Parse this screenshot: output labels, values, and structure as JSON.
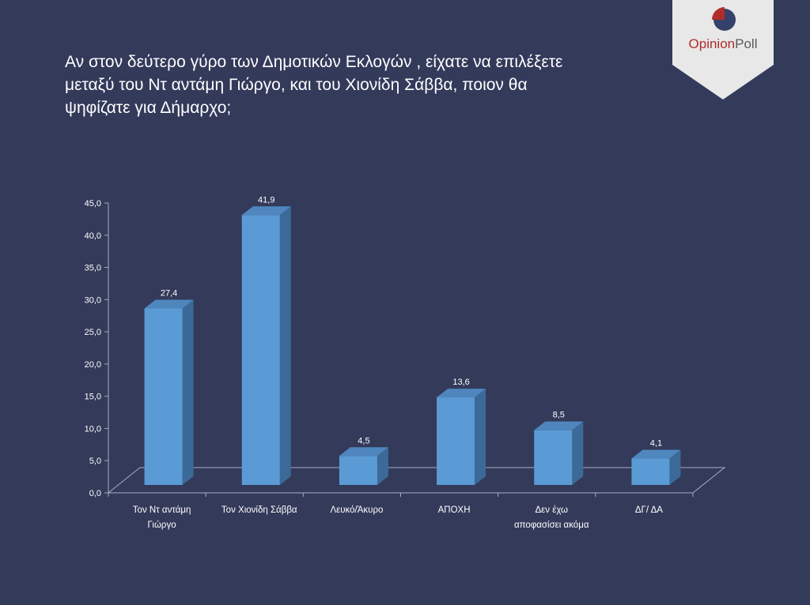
{
  "header": {
    "title_lines": [
      "Αν στον δεύτερο γύρο των Δημοτικών Εκλογών , είχατε να επιλέξετε",
      "μεταξύ του Ντ αντάμη Γιώργο, και του  Χιονίδη Σάββα, ποιον θα",
      "ψηφίζατε  για Δήμαρχο;"
    ]
  },
  "logo": {
    "word1": "Opinion",
    "word2": "Poll",
    "icon": "pie-logo-icon",
    "colors": {
      "badge": "#e8e8e8",
      "circle": "#35406b",
      "wedge": "#b22b2b"
    }
  },
  "colors": {
    "background": "#333a5a",
    "bar_front": "#5b9bd5",
    "bar_side": "#3c6a98",
    "bar_top": "#4f86be",
    "axis": "#a9adc0",
    "text": "#ffffff"
  },
  "chart_data": {
    "type": "bar",
    "three_d": true,
    "categories": [
      [
        "Τον Ντ αντάμη",
        "Γιώργο"
      ],
      [
        "Τον Χιονίδη Σάββα"
      ],
      [
        "Λευκό/Άκυρο"
      ],
      [
        "ΑΠΟΧΗ"
      ],
      [
        "Δεν έχω",
        "αποφασίσει ακόμα"
      ],
      [
        "ΔΓ/ ΔΑ"
      ]
    ],
    "values": [
      27.4,
      41.9,
      4.5,
      13.6,
      8.5,
      4.1
    ],
    "value_labels": [
      "27,4",
      "41,9",
      "4,5",
      "13,6",
      "8,5",
      "4,1"
    ],
    "ylim": [
      0,
      45
    ],
    "yticks": [
      "0,0",
      "5,0",
      "10,0",
      "15,0",
      "20,0",
      "25,0",
      "30,0",
      "35,0",
      "40,0",
      "45,0"
    ],
    "title": "",
    "xlabel": "",
    "ylabel": "",
    "grid": false,
    "legend": "none"
  }
}
